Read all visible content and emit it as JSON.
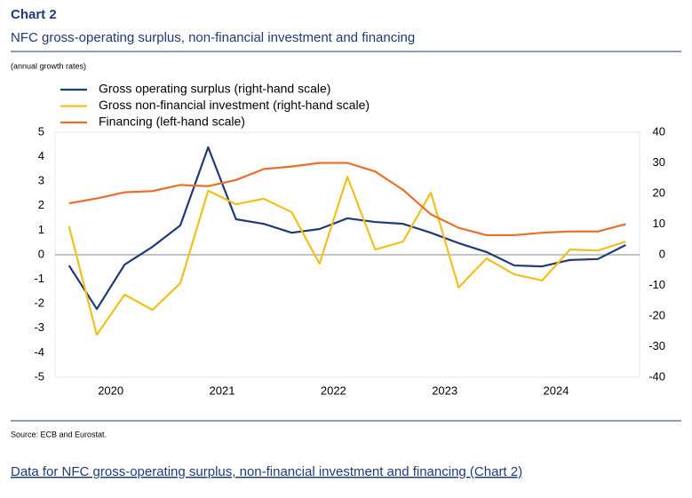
{
  "chart_data": {
    "type": "line",
    "title": "Chart 2",
    "subtitle": "NFC gross-operating surplus, non-financial investment and financing",
    "note": "(annual growth rates)",
    "source": "Source: ECB and Eurostat.",
    "x": [
      2020,
      2020.25,
      2020.5,
      2020.75,
      2021,
      2021.25,
      2021.5,
      2021.75,
      2022,
      2022.25,
      2022.5,
      2022.75,
      2023,
      2023.25,
      2023.5,
      2023.75,
      2024,
      2024.25,
      2024.5,
      2024.75,
      2025
    ],
    "xlim": [
      2019.875,
      2025.125
    ],
    "xticks": [
      {
        "value": 2020.375,
        "label": "2020"
      },
      {
        "value": 2021.375,
        "label": "2021"
      },
      {
        "value": 2022.375,
        "label": "2022"
      },
      {
        "value": 2023.375,
        "label": "2023"
      },
      {
        "value": 2024.375,
        "label": "2024"
      }
    ],
    "ylim": [
      -5,
      5
    ],
    "yticks": [
      -5,
      -4,
      -3,
      -2,
      -1,
      0,
      1,
      2,
      3,
      4,
      5
    ],
    "y2lim": [
      -40,
      40
    ],
    "y2ticks": [
      -40,
      -30,
      -20,
      -10,
      0,
      10,
      20,
      30,
      40
    ],
    "series": [
      {
        "name": "Gross operating surplus (right-hand scale)",
        "color": "#1f3a7a",
        "axis": "y2",
        "values": [
          -3.5,
          -17.7,
          -3.2,
          2.6,
          9.6,
          35.1,
          11.6,
          10.1,
          7.2,
          8.4,
          11.9,
          10.7,
          10.1,
          7.2,
          3.8,
          0.9,
          -3.5,
          -3.8,
          -1.7,
          -1.4,
          3.2
        ]
      },
      {
        "name": "Gross non-financial investment (right-hand scale)",
        "color": "#f2c01c",
        "axis": "y2",
        "values": [
          9.3,
          -26.1,
          -13.0,
          -18.0,
          -9.3,
          20.9,
          16.5,
          18.3,
          13.9,
          -2.9,
          25.5,
          1.7,
          4.3,
          20.3,
          -10.7,
          -1.2,
          -6.4,
          -8.4,
          1.7,
          1.4,
          4.3
        ]
      },
      {
        "name": "Financing (left-hand scale)",
        "color": "#e8702a",
        "axis": "y",
        "values": [
          2.1,
          2.3,
          2.55,
          2.6,
          2.85,
          2.8,
          3.05,
          3.5,
          3.6,
          3.75,
          3.75,
          3.4,
          2.65,
          1.65,
          1.1,
          0.8,
          0.8,
          0.9,
          0.95,
          0.95,
          1.25
        ]
      }
    ]
  },
  "link": "Data for NFC gross-operating surplus, non-financial investment and financing (Chart 2)"
}
